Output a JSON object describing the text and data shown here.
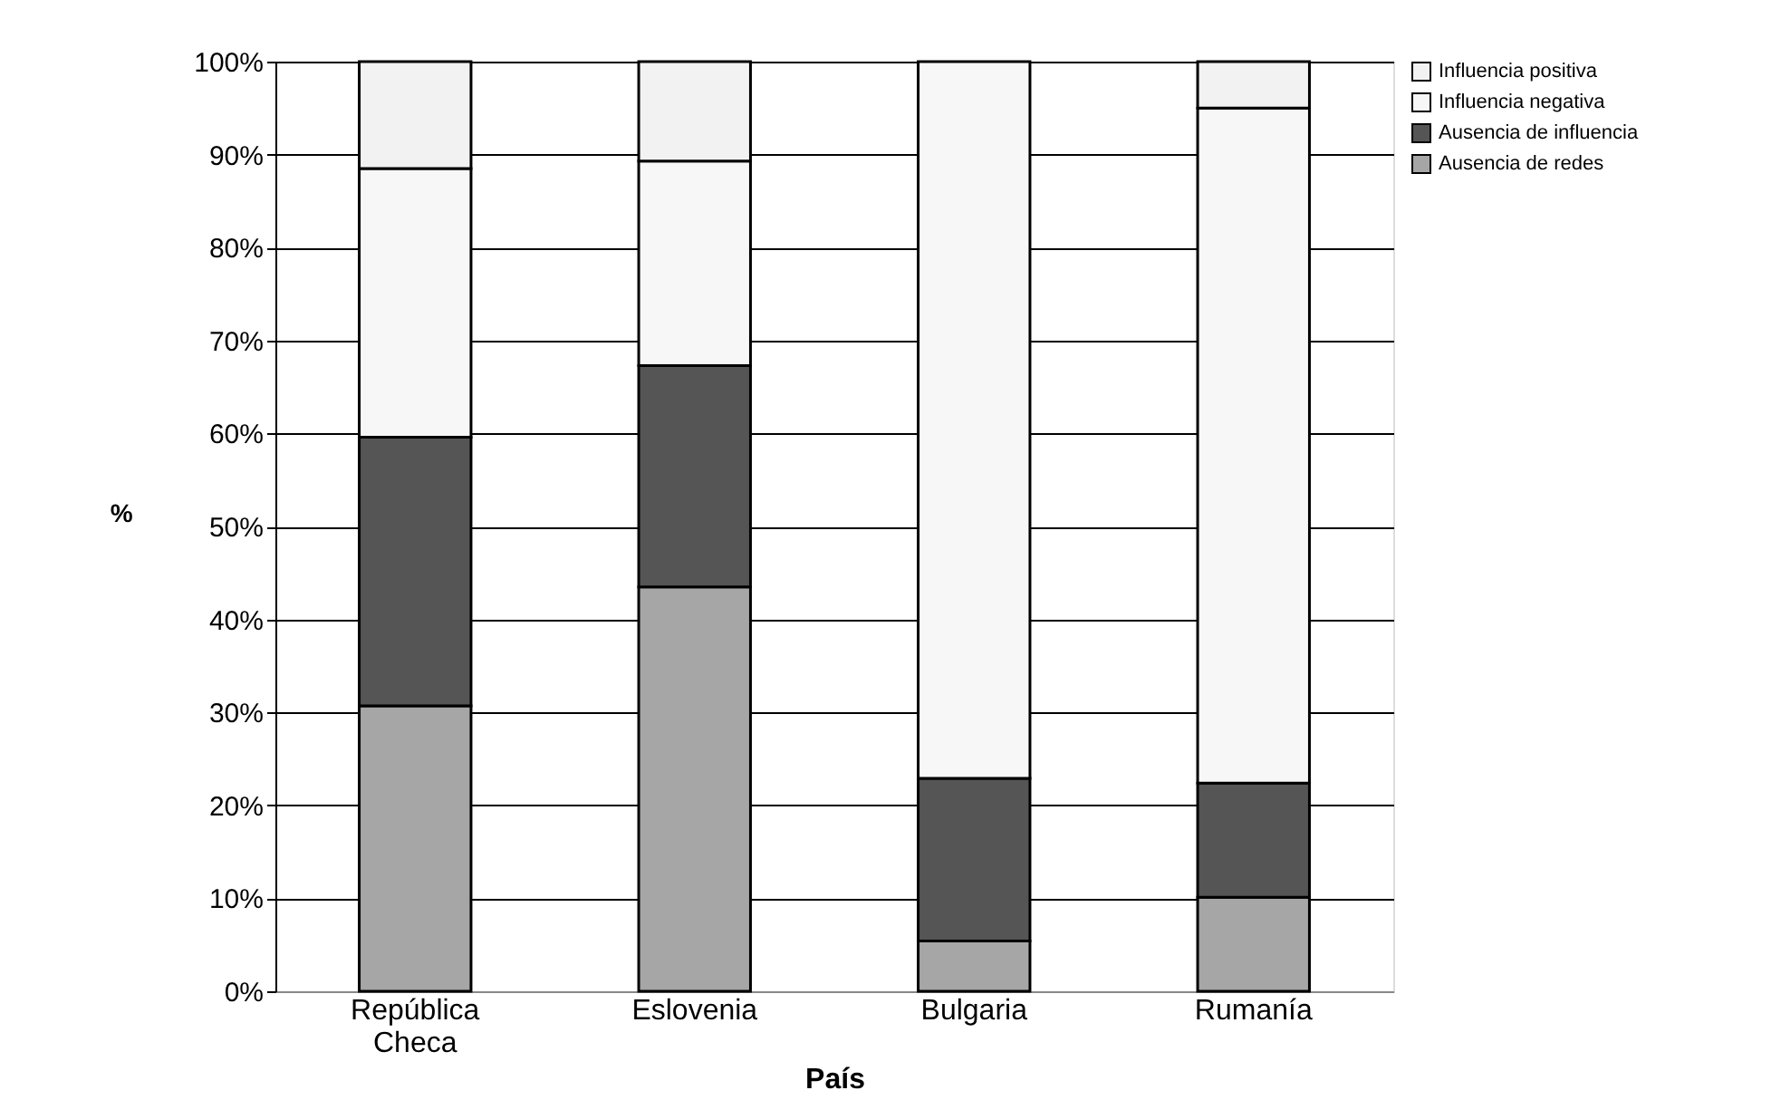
{
  "chart_data": {
    "type": "bar",
    "stacked": true,
    "xlabel": "País",
    "ylabel": "%",
    "categories": [
      "República Checa",
      "Eslovenia",
      "Bulgaria",
      "Rumanía"
    ],
    "series": [
      {
        "name": "Ausencia de redes",
        "color": "#a6a6a6",
        "values": [
          30.7,
          43.5,
          5.4,
          10.1
        ]
      },
      {
        "name": "Ausencia de influencia",
        "color": "#555555",
        "values": [
          28.9,
          23.8,
          17.5,
          12.3
        ]
      },
      {
        "name": "Influencia negativa",
        "color": "#f7f7f7",
        "values": [
          28.9,
          22.0,
          77.1,
          72.6
        ]
      },
      {
        "name": "Influencia positiva",
        "color": "#f2f2f2",
        "values": [
          11.5,
          10.7,
          null,
          5.0
        ]
      }
    ],
    "ylim": [
      0,
      100
    ],
    "yticks": [
      {
        "value": 0,
        "label": "0%"
      },
      {
        "value": 10,
        "label": "10%"
      },
      {
        "value": 20,
        "label": "20%"
      },
      {
        "value": 30,
        "label": "30%"
      },
      {
        "value": 40,
        "label": "40%"
      },
      {
        "value": 50,
        "label": "50%"
      },
      {
        "value": 60,
        "label": "60%"
      },
      {
        "value": 70,
        "label": "70%"
      },
      {
        "value": 80,
        "label": "80%"
      },
      {
        "value": 90,
        "label": "90%"
      },
      {
        "value": 100,
        "label": "100%"
      }
    ],
    "grid": "y",
    "legend": "right"
  }
}
